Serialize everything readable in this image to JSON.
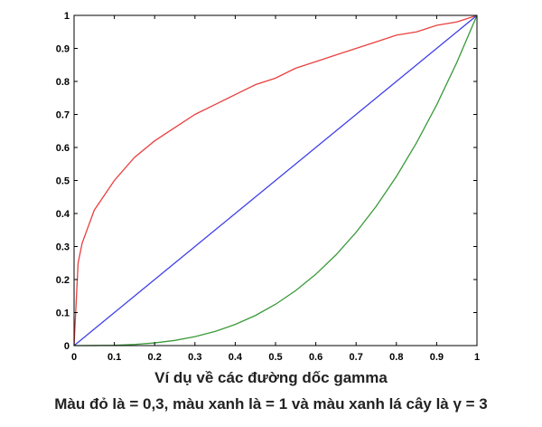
{
  "chart_data": {
    "type": "line",
    "title": "",
    "xlabel": "",
    "ylabel": "",
    "xlim": [
      0,
      1
    ],
    "ylim": [
      0,
      1
    ],
    "x_ticks": [
      "0",
      "0.1",
      "0.2",
      "0.3",
      "0.4",
      "0.5",
      "0.6",
      "0.7",
      "0.8",
      "0.9",
      "1"
    ],
    "y_ticks": [
      "0",
      "0.1",
      "0.2",
      "0.3",
      "0.4",
      "0.5",
      "0.6",
      "0.7",
      "0.8",
      "0.9",
      "1"
    ],
    "grid": false,
    "legend": "none",
    "x": [
      0,
      0.01,
      0.02,
      0.05,
      0.1,
      0.15,
      0.2,
      0.25,
      0.3,
      0.35,
      0.4,
      0.45,
      0.5,
      0.55,
      0.6,
      0.65,
      0.7,
      0.75,
      0.8,
      0.85,
      0.9,
      0.95,
      1
    ],
    "series": [
      {
        "color": "#e8403f",
        "gamma": 0.3,
        "values": [
          0,
          0.25,
          0.31,
          0.41,
          0.5,
          0.57,
          0.62,
          0.66,
          0.7,
          0.73,
          0.76,
          0.79,
          0.81,
          0.84,
          0.86,
          0.88,
          0.9,
          0.92,
          0.94,
          0.95,
          0.97,
          0.98,
          1
        ]
      },
      {
        "color": "#4040e8",
        "gamma": 1,
        "values": [
          0,
          0.01,
          0.02,
          0.05,
          0.1,
          0.15,
          0.2,
          0.25,
          0.3,
          0.35,
          0.4,
          0.45,
          0.5,
          0.55,
          0.6,
          0.65,
          0.7,
          0.75,
          0.8,
          0.85,
          0.9,
          0.95,
          1
        ]
      },
      {
        "color": "#3a9a3a",
        "gamma": 3,
        "values": [
          0,
          1e-06,
          8e-06,
          0.000125,
          0.001,
          0.003375,
          0.008,
          0.0156,
          0.027,
          0.0429,
          0.064,
          0.0911,
          0.125,
          0.1664,
          0.216,
          0.2746,
          0.343,
          0.4219,
          0.512,
          0.6141,
          0.729,
          0.8574,
          1
        ]
      }
    ]
  },
  "caption": {
    "line1": "Ví dụ về các đường dốc gamma",
    "line2": "Màu đỏ là = 0,3, màu xanh là = 1 và màu xanh lá cây là γ = 3"
  }
}
